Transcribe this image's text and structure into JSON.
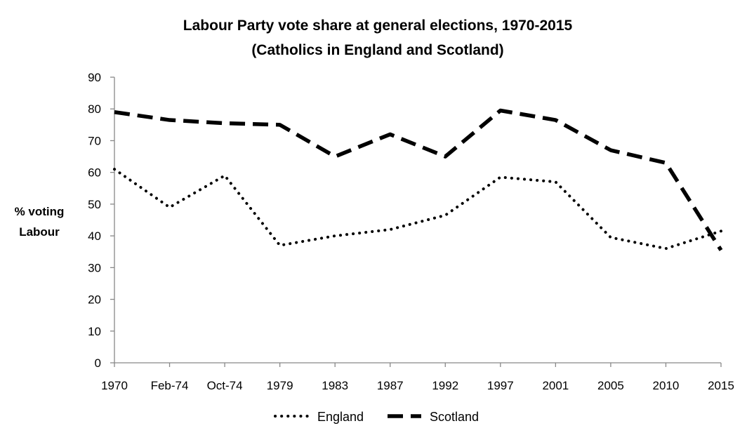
{
  "chart_data": {
    "type": "line",
    "title": "Labour Party vote share at general elections, 1970-2015",
    "subtitle": "(Catholics in England and Scotland)",
    "xlabel": "",
    "ylabel_line1": "% voting",
    "ylabel_line2": "Labour",
    "ylim": [
      0,
      90
    ],
    "yticks": [
      0,
      10,
      20,
      30,
      40,
      50,
      60,
      70,
      80,
      90
    ],
    "categories": [
      "1970",
      "Feb-74",
      "Oct-74",
      "1979",
      "1983",
      "1987",
      "1992",
      "1997",
      "2001",
      "2005",
      "2010",
      "2015"
    ],
    "legend_position": "bottom",
    "series": [
      {
        "name": "England",
        "style": "dotted",
        "color": "#000000",
        "values": [
          61,
          49,
          59,
          37,
          40,
          42,
          46.5,
          58.5,
          57,
          39.5,
          36,
          41.5
        ]
      },
      {
        "name": "Scotland",
        "style": "dashed",
        "color": "#000000",
        "values": [
          79,
          76.5,
          75.5,
          75,
          65,
          72,
          65,
          79.5,
          76.5,
          67,
          63,
          35.5
        ]
      }
    ]
  }
}
